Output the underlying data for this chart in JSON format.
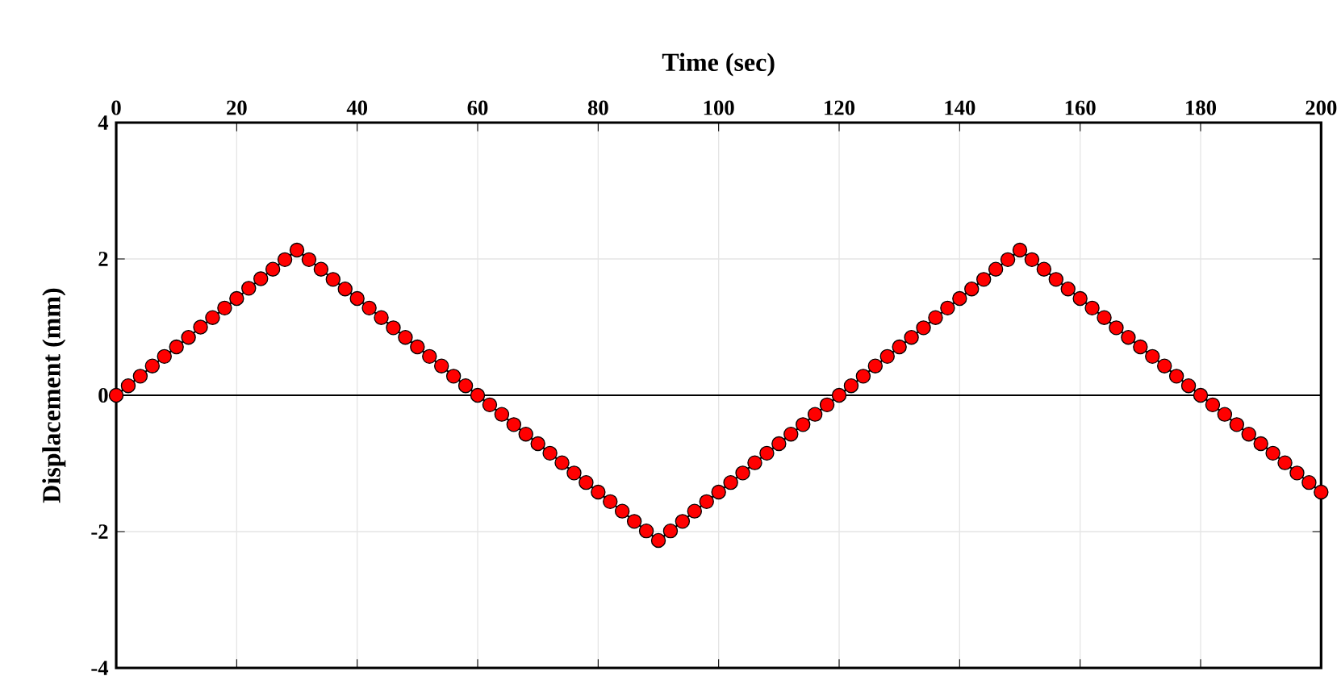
{
  "chart_data": {
    "type": "line",
    "xlabel": "Time (sec)",
    "ylabel": "Displacement (mm)",
    "xlim": [
      0,
      200
    ],
    "ylim": [
      -4,
      4
    ],
    "xticks": [
      0,
      20,
      40,
      60,
      80,
      100,
      120,
      140,
      160,
      180,
      200
    ],
    "yticks": [
      -4,
      -2,
      0,
      2,
      4
    ],
    "grid": true,
    "marker": "circle",
    "line_style": "solid",
    "ref_lines": [
      {
        "axis": "y",
        "value": 0,
        "color": "#000000"
      }
    ],
    "series": [
      {
        "color": "#ff0000",
        "x": [
          0,
          2,
          4,
          6,
          8,
          10,
          12,
          14,
          16,
          18,
          20,
          22,
          24,
          26,
          28,
          30,
          32,
          34,
          36,
          38,
          40,
          42,
          44,
          46,
          48,
          50,
          52,
          54,
          56,
          58,
          60,
          62,
          64,
          66,
          68,
          70,
          72,
          74,
          76,
          78,
          80,
          82,
          84,
          86,
          88,
          90,
          92,
          94,
          96,
          98,
          100,
          102,
          104,
          106,
          108,
          110,
          112,
          114,
          116,
          118,
          120,
          122,
          124,
          126,
          128,
          130,
          132,
          134,
          136,
          138,
          140,
          142,
          144,
          146,
          148,
          150,
          152,
          154,
          156,
          158,
          160,
          162,
          164,
          166,
          168,
          170,
          172,
          174,
          176,
          178,
          180,
          182,
          184,
          186,
          188,
          190,
          192,
          194,
          196,
          198,
          200
        ],
        "values": [
          0,
          0.14,
          0.28,
          0.43,
          0.57,
          0.71,
          0.85,
          1.0,
          1.14,
          1.28,
          1.42,
          1.57,
          1.71,
          1.85,
          1.99,
          2.13,
          1.99,
          1.85,
          1.7,
          1.56,
          1.42,
          1.28,
          1.14,
          0.99,
          0.85,
          0.71,
          0.57,
          0.43,
          0.28,
          0.14,
          0.0,
          -0.14,
          -0.28,
          -0.43,
          -0.57,
          -0.71,
          -0.85,
          -0.99,
          -1.14,
          -1.28,
          -1.42,
          -1.56,
          -1.7,
          -1.85,
          -1.99,
          -2.13,
          -1.99,
          -1.85,
          -1.7,
          -1.56,
          -1.42,
          -1.28,
          -1.14,
          -0.99,
          -0.85,
          -0.71,
          -0.57,
          -0.43,
          -0.28,
          -0.14,
          0.0,
          0.14,
          0.28,
          0.43,
          0.57,
          0.71,
          0.85,
          0.99,
          1.14,
          1.28,
          1.42,
          1.56,
          1.7,
          1.85,
          1.99,
          2.13,
          1.99,
          1.85,
          1.7,
          1.56,
          1.42,
          1.28,
          1.14,
          0.99,
          0.85,
          0.71,
          0.57,
          0.43,
          0.28,
          0.14,
          0.0,
          -0.14,
          -0.28,
          -0.43,
          -0.57,
          -0.71,
          -0.85,
          -0.99,
          -1.14,
          -1.28,
          -1.42
        ]
      }
    ]
  }
}
